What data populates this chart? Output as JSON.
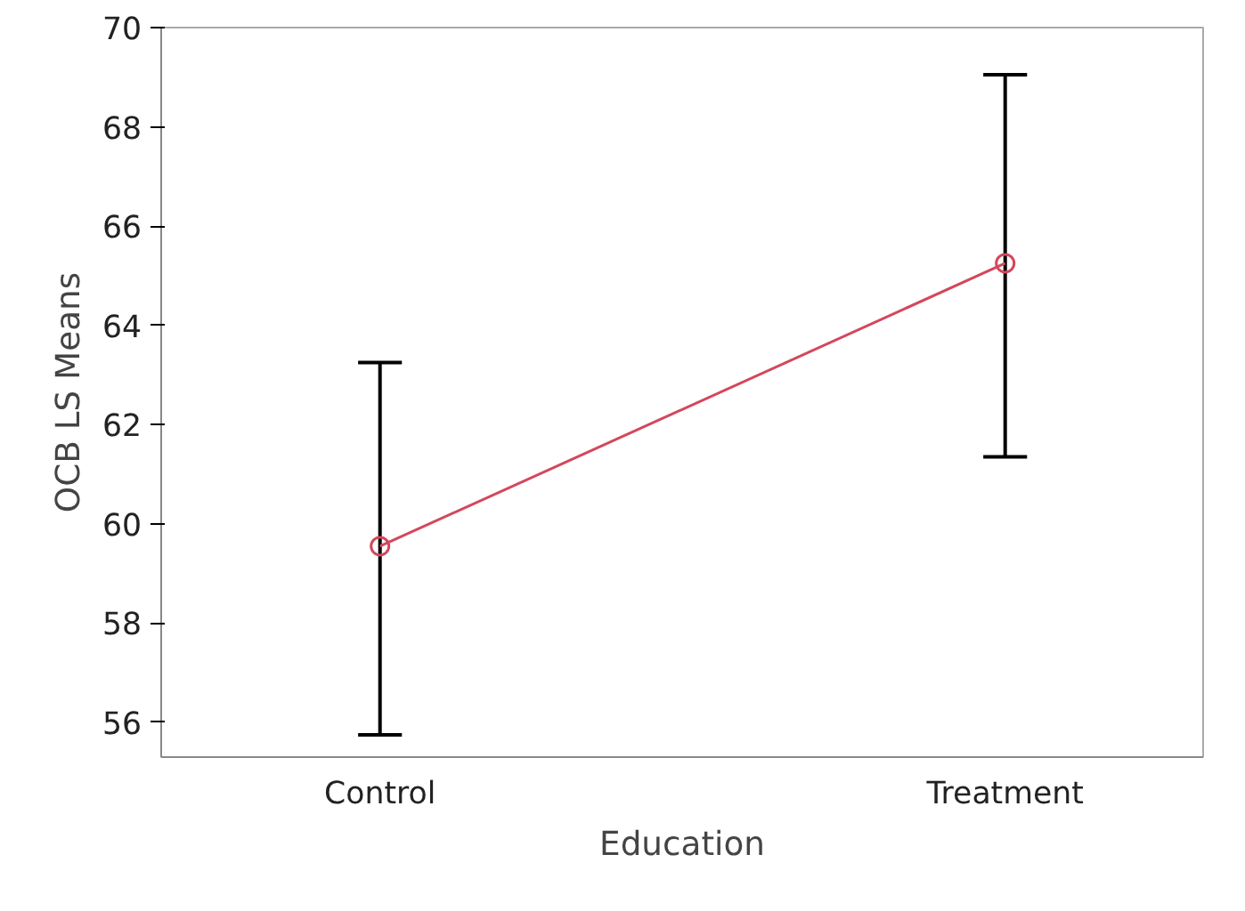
{
  "chart_data": {
    "type": "line",
    "xlabel": "Education",
    "ylabel": "OCB LS Means",
    "categories": [
      "Control",
      "Treatment"
    ],
    "series": [
      {
        "color": "#d4475c",
        "values": [
          59.55,
          65.25
        ],
        "errors": [
          [
            55.75,
            63.25
          ],
          [
            61.35,
            69.05
          ]
        ]
      }
    ],
    "ylim": [
      55.3,
      70
    ],
    "yticks": [
      56,
      58,
      60,
      62,
      64,
      66,
      68,
      70
    ],
    "marker": "circle",
    "line_style": "solid"
  }
}
